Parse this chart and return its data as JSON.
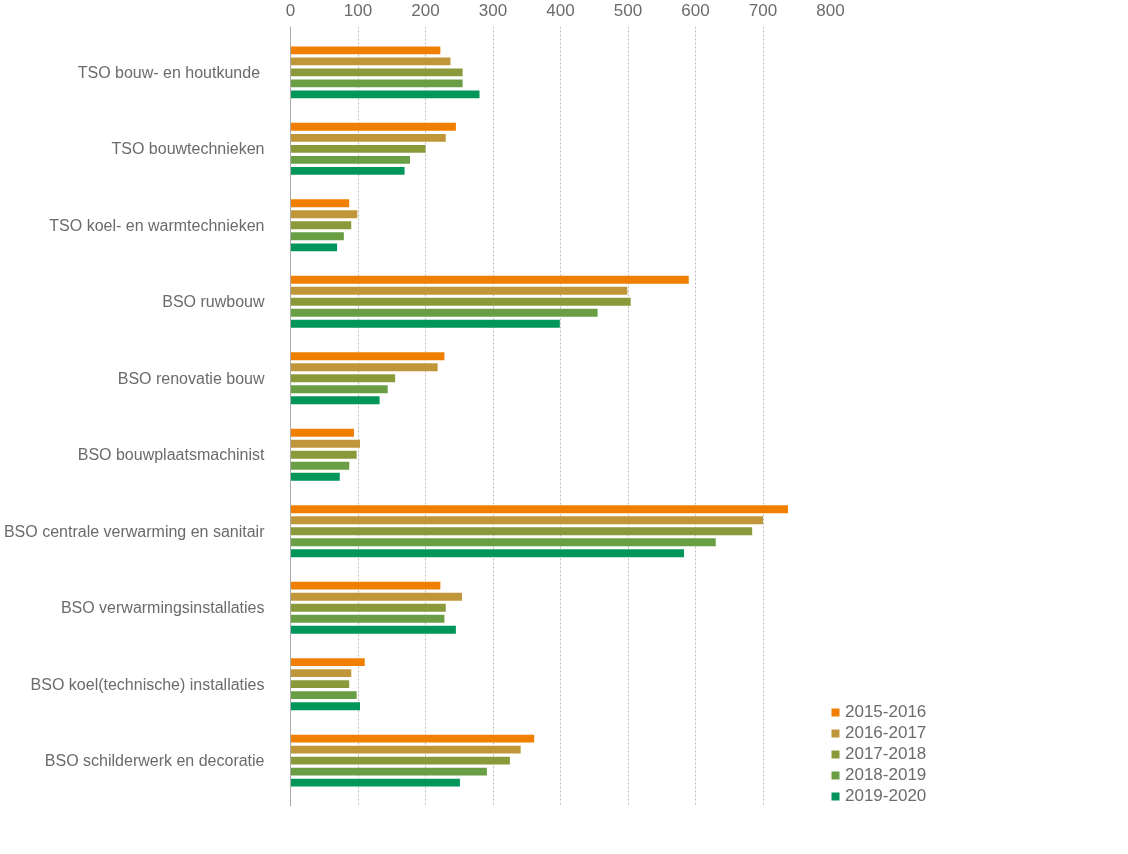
{
  "chart_data": {
    "type": "bar",
    "orientation": "horizontal",
    "categories": [
      "TSO bouw-  en houtkunde",
      "TSO bouwtechnieken",
      "TSO koel- en warmtechnieken",
      "BSO ruwbouw",
      "BSO renovatie bouw",
      "BSO bouwplaatsmachinist",
      "BSO centrale verwarming en sanitair",
      "BSO verwarmingsinstallaties",
      "BSO koel(technische) installaties",
      "BSO schilderwerk en decoratie"
    ],
    "series": [
      {
        "name": "2015-2016",
        "color": "#f07f00",
        "values": [
          222,
          245,
          87,
          590,
          228,
          94,
          737,
          222,
          110,
          361
        ]
      },
      {
        "name": "2016-2017",
        "color": "#c0963a",
        "values": [
          237,
          230,
          99,
          499,
          218,
          103,
          700,
          254,
          90,
          341
        ]
      },
      {
        "name": "2017-2018",
        "color": "#8a9a3b",
        "values": [
          255,
          200,
          90,
          504,
          155,
          98,
          684,
          230,
          87,
          325
        ]
      },
      {
        "name": "2018-2019",
        "color": "#6a9e45",
        "values": [
          255,
          177,
          79,
          455,
          144,
          87,
          630,
          228,
          98,
          291
        ]
      },
      {
        "name": "2019-2020",
        "color": "#00965a",
        "values": [
          280,
          169,
          69,
          399,
          132,
          73,
          583,
          245,
          103,
          251
        ]
      }
    ],
    "xlim": [
      0,
      800
    ],
    "xticks": [
      0,
      100,
      200,
      300,
      400,
      500,
      600,
      700,
      800
    ],
    "grid": "x",
    "legend": "bottom right"
  }
}
